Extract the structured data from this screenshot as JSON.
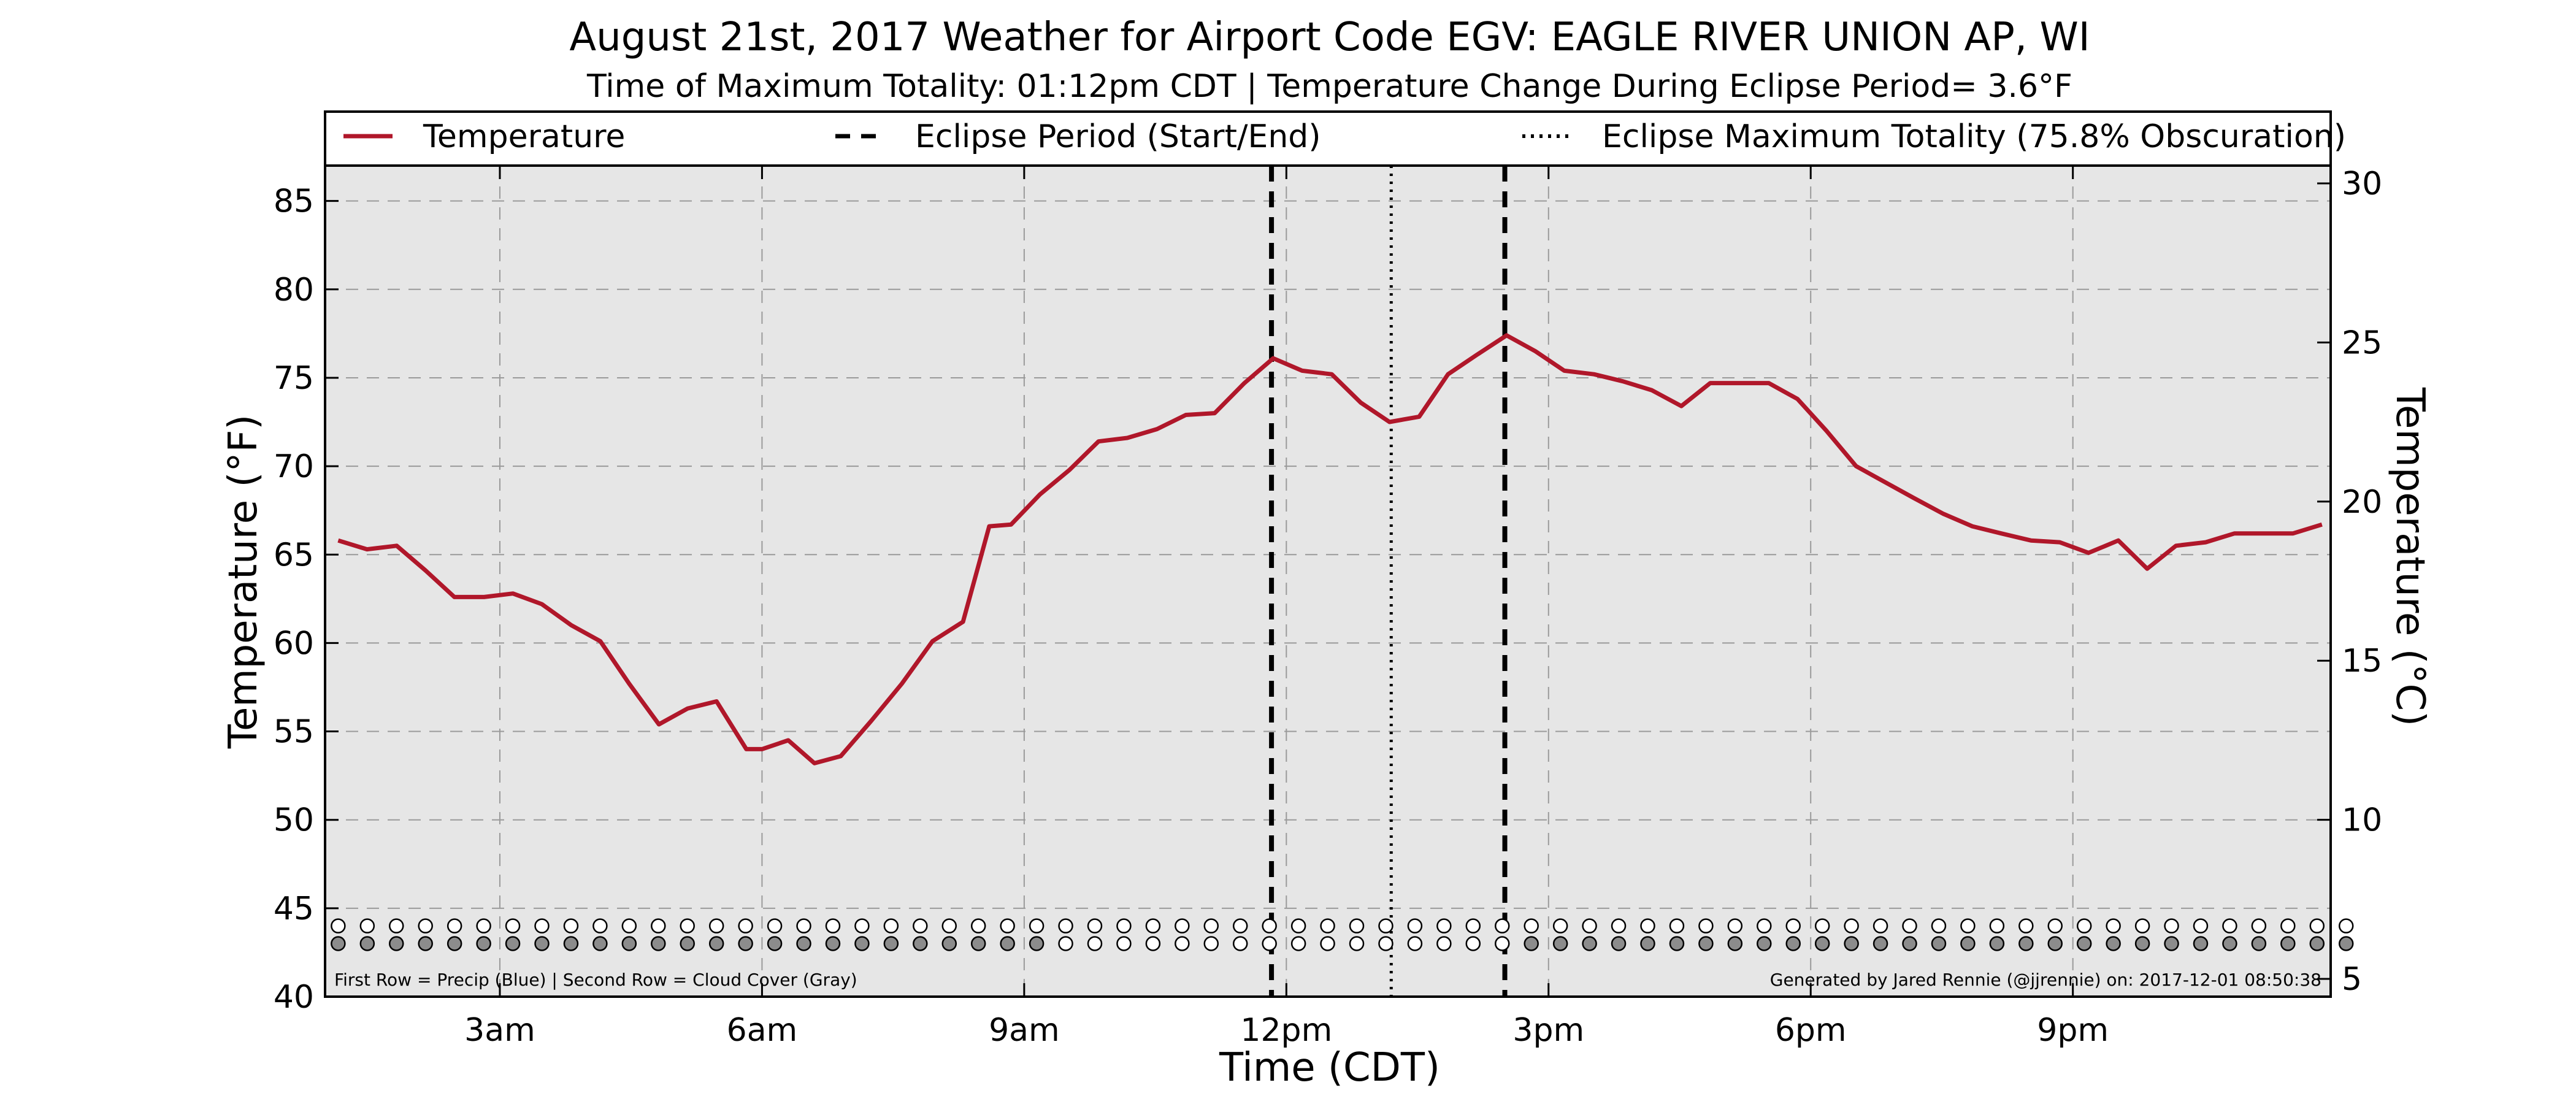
{
  "chart_data": {
    "type": "line",
    "title": "August 21st, 2017 Weather for Airport Code EGV: EAGLE RIVER UNION AP, WI",
    "subtitle": "Time of Maximum Totality: 01:12pm CDT | Temperature Change During Eclipse Period= 3.6°F",
    "xlabel": "Time (CDT)",
    "ylabel": "Temperature (°F)",
    "ylabel_right": "Temperature (°C)",
    "x_unit": "hours after midnight CDT",
    "xlim": [
      1.0,
      23.95
    ],
    "ylim": [
      40,
      87
    ],
    "ylim_right_celsius": [
      4.44,
      30.56
    ],
    "x_ticks": [
      {
        "value": 3,
        "label": "3am"
      },
      {
        "value": 6,
        "label": "6am"
      },
      {
        "value": 9,
        "label": "9am"
      },
      {
        "value": 12,
        "label": "12pm"
      },
      {
        "value": 15,
        "label": "3pm"
      },
      {
        "value": 18,
        "label": "6pm"
      },
      {
        "value": 21,
        "label": "9pm"
      }
    ],
    "y_ticks_left": [
      40,
      45,
      50,
      55,
      60,
      65,
      70,
      75,
      80,
      85
    ],
    "y_ticks_right": [
      5,
      10,
      15,
      20,
      25,
      30
    ],
    "grid": true,
    "legend_placement": "top, horizontal",
    "legend": [
      {
        "label": "Temperature",
        "style": "solid",
        "color": "#b0172a"
      },
      {
        "label": "Eclipse Period (Start/End)",
        "style": "dashed",
        "color": "#000000"
      },
      {
        "label": "Eclipse Maximum Totality (75.8% Obscuration)",
        "style": "dotted",
        "color": "#000000"
      }
    ],
    "series": [
      {
        "name": "Temperature",
        "color": "#b0172a",
        "x": [
          1.15,
          1.48,
          1.82,
          2.15,
          2.48,
          2.82,
          3.15,
          3.48,
          3.82,
          4.15,
          4.48,
          4.82,
          5.15,
          5.48,
          5.82,
          6.0,
          6.3,
          6.6,
          6.9,
          7.25,
          7.6,
          7.95,
          8.3,
          8.6,
          8.85,
          9.18,
          9.52,
          9.85,
          10.18,
          10.52,
          10.85,
          11.18,
          11.52,
          11.85,
          12.18,
          12.52,
          12.85,
          13.18,
          13.52,
          13.85,
          14.18,
          14.52,
          14.85,
          15.18,
          15.52,
          15.85,
          16.18,
          16.52,
          16.85,
          17.18,
          17.52,
          17.85,
          18.18,
          18.52,
          18.85,
          19.18,
          19.52,
          19.85,
          20.18,
          20.52,
          20.85,
          21.18,
          21.52,
          21.85,
          22.18,
          22.52,
          22.85,
          23.18,
          23.52,
          23.85
        ],
        "y": [
          65.8,
          65.3,
          65.5,
          64.1,
          62.6,
          62.6,
          62.8,
          62.2,
          61.0,
          60.1,
          57.7,
          55.4,
          56.3,
          56.7,
          54.0,
          54.0,
          54.5,
          53.2,
          53.6,
          55.6,
          57.7,
          60.1,
          61.2,
          66.6,
          66.7,
          68.4,
          69.8,
          71.4,
          71.6,
          72.1,
          72.9,
          73.0,
          74.7,
          76.1,
          75.4,
          75.2,
          73.6,
          72.5,
          72.8,
          75.2,
          76.3,
          77.4,
          76.5,
          75.4,
          75.2,
          74.8,
          74.3,
          73.4,
          74.7,
          74.7,
          74.7,
          73.8,
          72.0,
          70.0,
          69.1,
          68.2,
          67.3,
          66.6,
          66.2,
          65.8,
          65.7,
          65.1,
          65.8,
          64.2,
          65.5,
          65.7,
          66.2,
          66.2,
          66.2,
          66.7
        ]
      }
    ],
    "eclipse_start_hour": 11.83,
    "eclipse_end_hour": 14.5,
    "max_totality_hour": 13.2,
    "indicator_rows": {
      "x_start": 1.15,
      "x_step": 0.333,
      "count": 70,
      "precip_y": 44,
      "cloud_y": 43,
      "precip_color": "#ffffff",
      "cloud_filled_color": "#8c8c8c",
      "cloud_clear_color": "#ffffff",
      "cloud_cover": [
        1,
        1,
        1,
        1,
        1,
        1,
        1,
        1,
        1,
        1,
        1,
        1,
        1,
        1,
        1,
        1,
        1,
        1,
        1,
        1,
        1,
        1,
        1,
        1,
        1,
        0,
        0,
        0,
        0,
        0,
        0,
        0,
        0,
        0,
        0,
        0,
        0,
        0,
        0,
        0,
        0,
        1,
        1,
        1,
        1,
        1,
        1,
        1,
        1,
        1,
        1,
        1,
        1,
        1,
        1,
        1,
        1,
        1,
        1,
        1,
        1,
        1,
        1,
        1,
        1,
        1,
        1,
        1,
        1,
        1
      ]
    },
    "footnote_left": "First Row = Precip (Blue) | Second Row = Cloud Cover (Gray)",
    "footnote_right": "Generated by Jared Rennie (@jjrennie) on: 2017-12-01 08:50:38"
  }
}
